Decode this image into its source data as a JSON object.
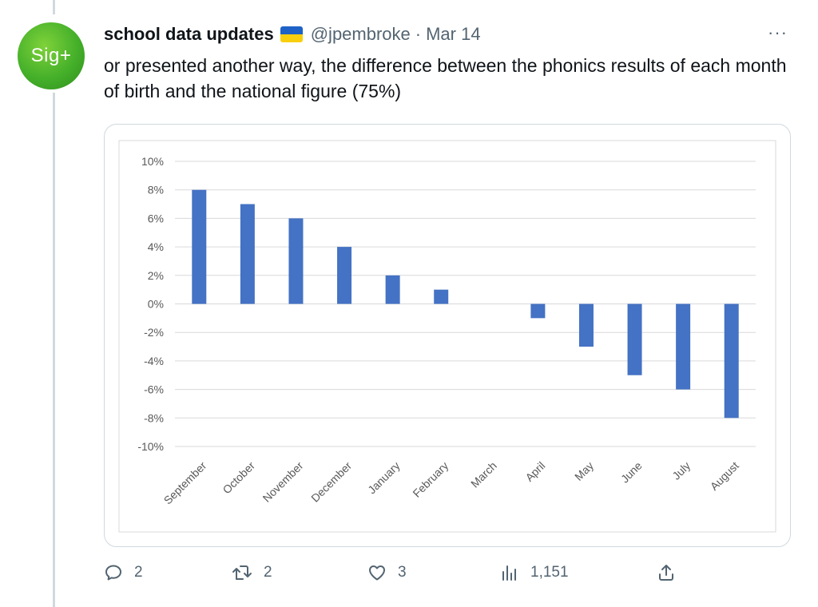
{
  "tweet": {
    "author_name": "school data updates",
    "flag_icon": "ukraine-flag-icon",
    "handle": "@jpembroke",
    "separator": "·",
    "date": "Mar 14",
    "more_label": "···",
    "text": "or presented another way, the difference between the phonics results of each month of birth and the national figure (75%)"
  },
  "avatar": {
    "label": "Sig+",
    "color": "#45b02a"
  },
  "actions": {
    "reply_count": "2",
    "retweet_count": "2",
    "like_count": "3",
    "views_count": "1,151"
  },
  "chart_data": {
    "type": "bar",
    "categories": [
      "September",
      "October",
      "November",
      "December",
      "January",
      "February",
      "March",
      "April",
      "May",
      "June",
      "July",
      "August"
    ],
    "values": [
      8,
      7,
      6,
      4,
      2,
      1,
      0,
      -1,
      -3,
      -5,
      -6,
      -8
    ],
    "y_ticks": [
      "10%",
      "8%",
      "6%",
      "4%",
      "2%",
      "0%",
      "-2%",
      "-4%",
      "-6%",
      "-8%",
      "-10%"
    ],
    "ylim": [
      -10,
      10
    ],
    "title": "",
    "xlabel": "",
    "ylabel": "",
    "grid": true,
    "bar_color": "#4472c4"
  }
}
